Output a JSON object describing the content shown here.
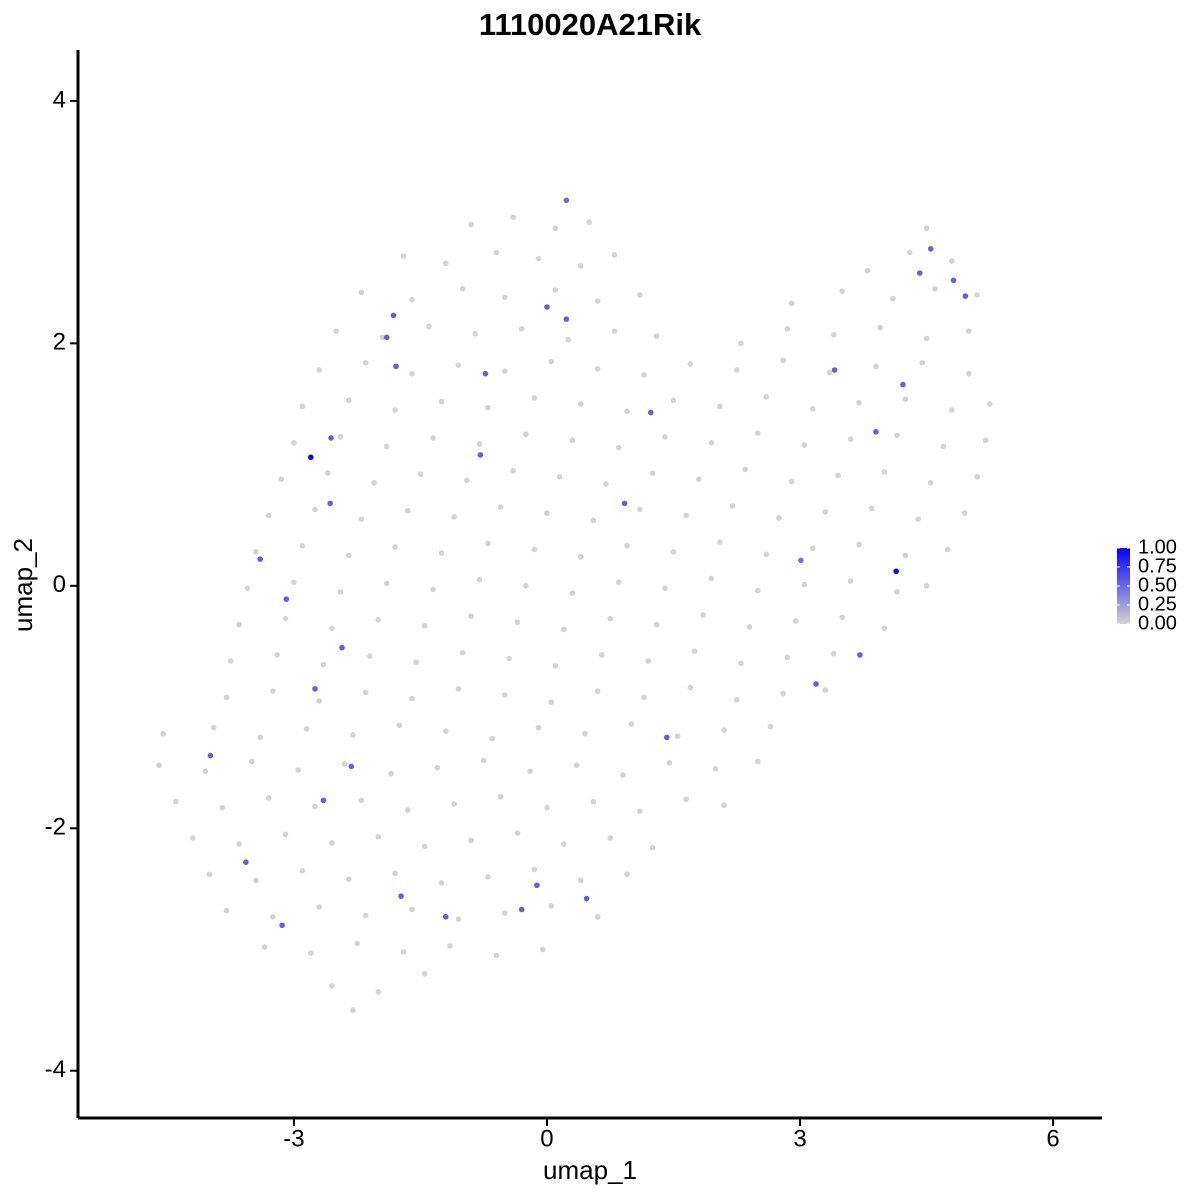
{
  "chart_data": {
    "type": "scatter",
    "title": "1110020A21Rik",
    "x_label": "umap_1",
    "y_label": "umap_2",
    "xlim": [
      -5.56,
      6.58
    ],
    "ylim": [
      -4.39,
      4.42
    ],
    "xticks": [
      -3,
      0,
      3,
      6
    ],
    "yticks": [
      -4,
      -2,
      0,
      2,
      4
    ],
    "x": [
      -0.9,
      -0.4,
      0.1,
      0.5,
      4.5,
      -1.7,
      -1.2,
      -0.6,
      -0.1,
      0.4,
      0.8,
      3.8,
      4.3,
      4.8,
      -2.2,
      -1.6,
      -1.0,
      -0.5,
      0.1,
      0.6,
      1.1,
      2.9,
      3.5,
      4.1,
      4.6,
      5.1,
      -2.5,
      -1.95,
      -1.4,
      -0.85,
      -0.3,
      0.25,
      0.8,
      1.3,
      2.3,
      2.85,
      3.4,
      3.95,
      4.5,
      5.0,
      -2.7,
      -2.15,
      -1.6,
      -1.05,
      -0.5,
      0.05,
      0.6,
      1.15,
      1.7,
      2.25,
      2.8,
      3.35,
      3.9,
      4.45,
      5.0,
      -2.9,
      -2.35,
      -1.8,
      -1.25,
      -0.7,
      -0.15,
      0.4,
      0.95,
      1.5,
      2.05,
      2.6,
      3.15,
      3.7,
      4.25,
      4.8,
      5.25,
      -3.0,
      -2.45,
      -1.9,
      -1.35,
      -0.8,
      -0.25,
      0.3,
      0.85,
      1.4,
      1.95,
      2.5,
      3.05,
      3.6,
      4.15,
      4.7,
      5.2,
      -3.15,
      -2.6,
      -2.05,
      -1.5,
      -0.95,
      -0.4,
      0.15,
      0.7,
      1.25,
      1.8,
      2.35,
      2.9,
      3.45,
      4.0,
      4.55,
      5.1,
      -3.3,
      -2.75,
      -2.2,
      -1.65,
      -1.1,
      -0.55,
      0.0,
      0.55,
      1.1,
      1.65,
      2.2,
      2.75,
      3.3,
      3.85,
      4.4,
      4.95,
      -3.45,
      -2.9,
      -2.35,
      -1.8,
      -1.25,
      -0.7,
      -0.15,
      0.4,
      0.95,
      1.5,
      2.05,
      2.6,
      3.15,
      3.7,
      4.25,
      4.75,
      -3.55,
      -3.0,
      -2.45,
      -1.9,
      -1.35,
      -0.8,
      -0.25,
      0.3,
      0.85,
      1.4,
      1.95,
      2.5,
      3.05,
      3.6,
      4.15,
      4.5,
      -3.65,
      -3.1,
      -2.55,
      -2.0,
      -1.45,
      -0.9,
      -0.35,
      0.2,
      0.75,
      1.3,
      1.85,
      2.4,
      2.95,
      3.5,
      4.0,
      -3.75,
      -3.2,
      -2.65,
      -2.1,
      -1.55,
      -1.0,
      -0.45,
      0.1,
      0.65,
      1.2,
      1.75,
      2.3,
      2.85,
      3.4,
      -3.8,
      -3.25,
      -2.7,
      -2.15,
      -1.6,
      -1.05,
      -0.5,
      0.05,
      0.6,
      1.15,
      1.7,
      2.25,
      2.8,
      3.3,
      -4.55,
      -3.95,
      -3.4,
      -2.85,
      -2.3,
      -1.75,
      -1.2,
      -0.65,
      -0.1,
      0.45,
      1.0,
      1.55,
      2.1,
      2.65,
      -4.6,
      -4.05,
      -3.5,
      -2.95,
      -2.4,
      -1.85,
      -1.3,
      -0.75,
      -0.2,
      0.35,
      0.9,
      1.45,
      2.0,
      2.5,
      -4.4,
      -3.85,
      -3.3,
      -2.75,
      -2.2,
      -1.65,
      -1.1,
      -0.55,
      0.0,
      0.55,
      1.1,
      1.65,
      2.1,
      -4.2,
      -3.65,
      -3.1,
      -2.55,
      -2.0,
      -1.45,
      -0.9,
      -0.35,
      0.2,
      0.75,
      1.25,
      -4.0,
      -3.45,
      -2.9,
      -2.35,
      -1.8,
      -1.25,
      -0.7,
      -0.15,
      0.4,
      0.95,
      -3.8,
      -3.25,
      -2.7,
      -2.15,
      -1.6,
      -1.05,
      -0.5,
      0.05,
      0.6,
      -3.35,
      -2.8,
      -2.25,
      -1.7,
      -1.15,
      -0.6,
      -0.05,
      -2.55,
      -2.0,
      -1.45,
      -2.3,
      0.23,
      4.55,
      4.42,
      4.82,
      4.96,
      0.0,
      0.23,
      -1.82,
      -1.9,
      -1.79,
      -0.73,
      3.41,
      4.22,
      1.23,
      3.9,
      -2.56,
      -2.8,
      -0.79,
      -2.57,
      0.92,
      -3.4,
      3.01,
      4.14,
      -3.09,
      -2.43,
      3.71,
      -2.75,
      3.19,
      1.42,
      -3.99,
      -2.32,
      -2.65,
      -3.57,
      -1.73,
      -0.12,
      0.47,
      -0.3,
      -1.2,
      -3.14
    ],
    "y": [
      2.98,
      3.04,
      2.95,
      3.0,
      2.95,
      2.72,
      2.66,
      2.75,
      2.7,
      2.64,
      2.73,
      2.6,
      2.75,
      2.68,
      2.42,
      2.36,
      2.45,
      2.38,
      2.44,
      2.35,
      2.4,
      2.33,
      2.43,
      2.37,
      2.45,
      2.4,
      2.1,
      2.05,
      2.14,
      2.08,
      2.12,
      2.03,
      2.1,
      2.06,
      2.0,
      2.12,
      2.07,
      2.13,
      2.04,
      2.1,
      1.78,
      1.84,
      1.75,
      1.82,
      1.77,
      1.85,
      1.79,
      1.74,
      1.83,
      1.78,
      1.86,
      1.76,
      1.81,
      1.84,
      1.75,
      1.48,
      1.53,
      1.45,
      1.52,
      1.47,
      1.55,
      1.5,
      1.44,
      1.53,
      1.48,
      1.56,
      1.46,
      1.51,
      1.54,
      1.45,
      1.5,
      1.18,
      1.23,
      1.15,
      1.22,
      1.17,
      1.25,
      1.2,
      1.14,
      1.23,
      1.18,
      1.26,
      1.16,
      1.21,
      1.24,
      1.15,
      1.2,
      0.88,
      0.93,
      0.85,
      0.92,
      0.87,
      0.95,
      0.9,
      0.84,
      0.93,
      0.88,
      0.96,
      0.86,
      0.91,
      0.94,
      0.85,
      0.9,
      0.58,
      0.63,
      0.55,
      0.62,
      0.57,
      0.65,
      0.6,
      0.54,
      0.63,
      0.58,
      0.66,
      0.56,
      0.61,
      0.64,
      0.55,
      0.6,
      0.28,
      0.33,
      0.25,
      0.32,
      0.27,
      0.35,
      0.3,
      0.24,
      0.33,
      0.28,
      0.36,
      0.26,
      0.31,
      0.34,
      0.25,
      0.3,
      -0.02,
      0.03,
      -0.05,
      0.02,
      -0.03,
      0.05,
      0.0,
      -0.06,
      0.03,
      -0.02,
      0.06,
      -0.04,
      0.01,
      0.04,
      -0.05,
      0.0,
      -0.32,
      -0.27,
      -0.35,
      -0.28,
      -0.33,
      -0.25,
      -0.3,
      -0.36,
      -0.27,
      -0.32,
      -0.24,
      -0.34,
      -0.29,
      -0.26,
      -0.35,
      -0.62,
      -0.57,
      -0.65,
      -0.58,
      -0.63,
      -0.55,
      -0.6,
      -0.66,
      -0.57,
      -0.62,
      -0.54,
      -0.64,
      -0.59,
      -0.56,
      -0.92,
      -0.87,
      -0.95,
      -0.88,
      -0.93,
      -0.85,
      -0.9,
      -0.96,
      -0.87,
      -0.92,
      -0.84,
      -0.94,
      -0.89,
      -0.86,
      -1.22,
      -1.17,
      -1.25,
      -1.18,
      -1.23,
      -1.15,
      -1.2,
      -1.26,
      -1.17,
      -1.22,
      -1.14,
      -1.24,
      -1.19,
      -1.16,
      -1.48,
      -1.53,
      -1.45,
      -1.52,
      -1.47,
      -1.55,
      -1.5,
      -1.44,
      -1.53,
      -1.48,
      -1.56,
      -1.46,
      -1.51,
      -1.45,
      -1.78,
      -1.83,
      -1.75,
      -1.82,
      -1.77,
      -1.85,
      -1.8,
      -1.74,
      -1.83,
      -1.78,
      -1.86,
      -1.76,
      -1.81,
      -2.08,
      -2.13,
      -2.05,
      -2.12,
      -2.07,
      -2.15,
      -2.1,
      -2.04,
      -2.13,
      -2.08,
      -2.16,
      -2.38,
      -2.43,
      -2.35,
      -2.42,
      -2.37,
      -2.45,
      -2.4,
      -2.34,
      -2.43,
      -2.38,
      -2.68,
      -2.73,
      -2.65,
      -2.72,
      -2.67,
      -2.75,
      -2.7,
      -2.64,
      -2.73,
      -2.98,
      -3.03,
      -2.95,
      -3.02,
      -2.97,
      -3.05,
      -3.0,
      -3.3,
      -3.35,
      -3.2,
      -3.5,
      3.18,
      2.78,
      2.58,
      2.52,
      2.39,
      2.3,
      2.2,
      2.23,
      2.05,
      1.81,
      1.75,
      1.78,
      1.66,
      1.43,
      1.27,
      1.22,
      1.06,
      1.08,
      0.68,
      0.68,
      0.22,
      0.21,
      0.12,
      -0.11,
      -0.51,
      -0.57,
      -0.85,
      -0.81,
      -1.25,
      -1.4,
      -1.49,
      -1.77,
      -2.28,
      -2.56,
      -2.47,
      -2.58,
      -2.67,
      -2.73,
      -2.8
    ],
    "values": [
      0,
      0,
      0,
      0,
      0,
      0,
      0,
      0,
      0,
      0,
      0,
      0,
      0,
      0,
      0,
      0,
      0,
      0,
      0,
      0,
      0,
      0,
      0,
      0,
      0,
      0,
      0,
      0,
      0,
      0,
      0,
      0,
      0,
      0,
      0,
      0,
      0,
      0,
      0,
      0,
      0,
      0,
      0,
      0,
      0,
      0,
      0,
      0,
      0,
      0,
      0,
      0,
      0,
      0,
      0,
      0,
      0,
      0,
      0,
      0,
      0,
      0,
      0,
      0,
      0,
      0,
      0,
      0,
      0,
      0,
      0,
      0,
      0,
      0,
      0,
      0,
      0,
      0,
      0,
      0,
      0,
      0,
      0,
      0,
      0,
      0,
      0,
      0,
      0,
      0,
      0,
      0,
      0,
      0,
      0,
      0,
      0,
      0,
      0,
      0,
      0,
      0,
      0,
      0,
      0,
      0,
      0,
      0,
      0,
      0,
      0,
      0,
      0,
      0,
      0,
      0,
      0,
      0,
      0,
      0,
      0,
      0,
      0,
      0,
      0,
      0,
      0,
      0,
      0,
      0,
      0,
      0,
      0,
      0,
      0,
      0,
      0,
      0,
      0,
      0,
      0,
      0,
      0,
      0,
      0,
      0,
      0,
      0,
      0,
      0,
      0,
      0,
      0,
      0,
      0,
      0,
      0,
      0,
      0,
      0,
      0,
      0,
      0,
      0,
      0,
      0,
      0,
      0,
      0,
      0,
      0,
      0,
      0,
      0,
      0,
      0,
      0,
      0,
      0,
      0,
      0,
      0,
      0,
      0,
      0,
      0,
      0,
      0,
      0,
      0,
      0,
      0,
      0,
      0,
      0,
      0,
      0,
      0,
      0,
      0,
      0,
      0,
      0,
      0,
      0,
      0,
      0,
      0,
      0,
      0,
      0,
      0,
      0,
      0,
      0,
      0,
      0,
      0,
      0,
      0,
      0,
      0,
      0,
      0,
      0,
      0,
      0,
      0,
      0,
      0,
      0,
      0,
      0,
      0,
      0,
      0,
      0,
      0,
      0,
      0,
      0,
      0,
      0,
      0,
      0,
      0,
      0,
      0,
      0,
      0,
      0,
      0,
      0,
      0,
      0,
      0,
      0,
      0,
      0,
      0,
      0,
      0,
      0,
      0,
      0,
      0,
      0,
      0,
      0,
      0,
      0,
      0,
      0,
      0,
      0,
      0,
      0.5,
      0.55,
      0.55,
      0.55,
      0.55,
      0.55,
      0.55,
      0.55,
      0.55,
      0.55,
      0.55,
      0.55,
      0.55,
      0.55,
      0.55,
      0.55,
      1.0,
      0.55,
      0.55,
      0.55,
      0.55,
      0.45,
      1.0,
      0.55,
      0.55,
      0.55,
      0.55,
      0.55,
      0.55,
      0.55,
      0.55,
      0.55,
      0.55,
      0.55,
      0.55,
      0.55,
      0.55,
      0.55,
      0.55
    ],
    "colorbar": {
      "low": "#D3D3D3",
      "high": "#0000FF",
      "lim": [
        0,
        1
      ],
      "ticks": [
        {
          "value": 0,
          "label": "0.00"
        },
        {
          "value": 0.25,
          "label": "0.25"
        },
        {
          "value": 0.5,
          "label": "0.50"
        },
        {
          "value": 0.75,
          "label": "0.75"
        },
        {
          "value": 1,
          "label": "1.00"
        }
      ]
    }
  }
}
